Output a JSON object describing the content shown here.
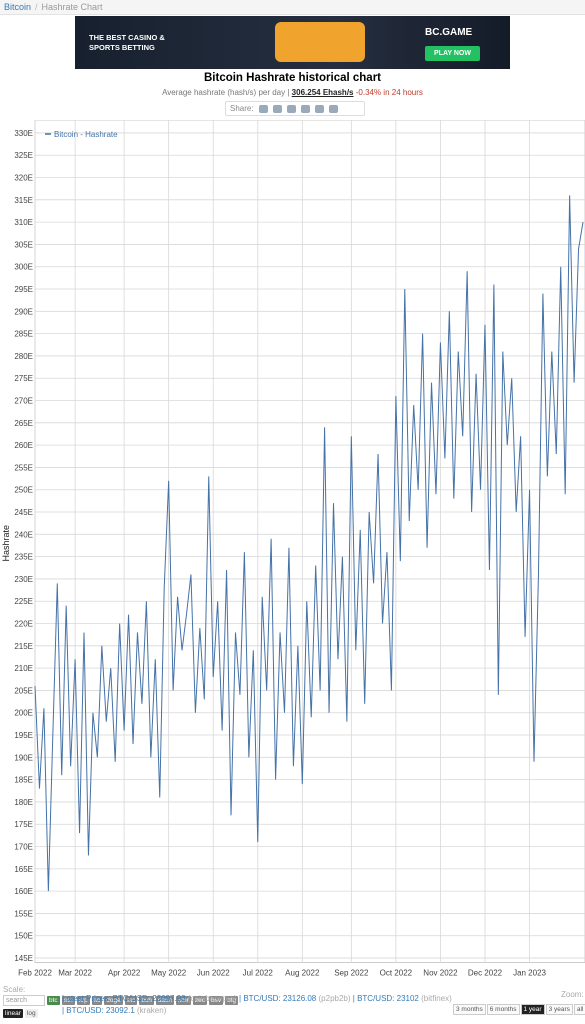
{
  "header": {
    "crumbs": [
      "Bitcoin",
      "Hashrate Chart"
    ]
  },
  "ad": {
    "tagline": "THE BEST CASINO & SPORTS BETTING",
    "brand": "BC.GAME",
    "button": "PLAY NOW"
  },
  "subtitle": {
    "text": "Average hashrate (hash/s) per day |",
    "current": "306.254 Ehash/s",
    "change": "-0.34% in 24 hours"
  },
  "share": "Share:",
  "chart_data": {
    "type": "line",
    "title": "Bitcoin Hashrate historical chart",
    "y_label": "Hashrate",
    "legend": "top-left",
    "grid": true,
    "categories": [
      "Feb 2022",
      null,
      null,
      null,
      null,
      null,
      null,
      null,
      null,
      "Mar 2022",
      null,
      null,
      null,
      null,
      null,
      null,
      null,
      null,
      null,
      null,
      "Apr 2022",
      null,
      null,
      null,
      null,
      null,
      null,
      null,
      null,
      null,
      "May 2022",
      null,
      null,
      null,
      null,
      null,
      null,
      null,
      null,
      null,
      "Jun 2022",
      null,
      null,
      null,
      null,
      null,
      null,
      null,
      null,
      null,
      "Jul 2022",
      null,
      null,
      null,
      null,
      null,
      null,
      null,
      null,
      null,
      "Aug 2022",
      null,
      null,
      null,
      null,
      null,
      null,
      null,
      null,
      null,
      null,
      "Sep 2022",
      null,
      null,
      null,
      null,
      null,
      null,
      null,
      null,
      null,
      "Oct 2022",
      null,
      null,
      null,
      null,
      null,
      null,
      null,
      null,
      null,
      "Nov 2022",
      null,
      null,
      null,
      null,
      null,
      null,
      null,
      null,
      null,
      "Dec 2022",
      null,
      null,
      null,
      null,
      null,
      null,
      null,
      null,
      null,
      "Jan 2023",
      null,
      null,
      null,
      null,
      null,
      null,
      null,
      null,
      null,
      null,
      null,
      null
    ],
    "series": [
      {
        "name": "Bitcoin - Hashrate",
        "color": "#4572a7",
        "values": [
          206,
          183,
          201,
          160,
          195,
          229,
          186,
          224,
          188,
          212,
          173,
          218,
          168,
          200,
          190,
          215,
          198,
          210,
          189,
          220,
          196,
          222,
          193,
          218,
          202,
          225,
          190,
          212,
          181,
          228,
          252,
          205,
          226,
          214,
          222,
          231,
          200,
          219,
          203,
          253,
          208,
          225,
          196,
          232,
          177,
          218,
          204,
          236,
          190,
          214,
          171,
          226,
          205,
          239,
          185,
          218,
          200,
          237,
          188,
          215,
          184,
          225,
          199,
          233,
          205,
          264,
          200,
          247,
          212,
          235,
          198,
          262,
          214,
          241,
          202,
          245,
          229,
          258,
          220,
          236,
          205,
          271,
          234,
          295,
          243,
          269,
          250,
          285,
          237,
          274,
          249,
          283,
          257,
          290,
          248,
          281,
          262,
          299,
          245,
          276,
          250,
          287,
          232,
          296,
          204,
          281,
          260,
          275,
          245,
          262,
          217,
          250,
          189,
          231,
          294,
          253,
          281,
          258,
          300,
          249,
          316,
          274,
          304,
          310
        ]
      }
    ],
    "ylim": [
      144,
      332
    ],
    "yticks": [
      {
        "value": 145,
        "label": "145E"
      },
      {
        "value": 150,
        "label": "150E"
      },
      {
        "value": 155,
        "label": "155E"
      },
      {
        "value": 160,
        "label": "160E"
      },
      {
        "value": 165,
        "label": "165E"
      },
      {
        "value": 170,
        "label": "170E"
      },
      {
        "value": 175,
        "label": "175E"
      },
      {
        "value": 180,
        "label": "180E"
      },
      {
        "value": 185,
        "label": "185E"
      },
      {
        "value": 190,
        "label": "190E"
      },
      {
        "value": 195,
        "label": "195E"
      },
      {
        "value": 200,
        "label": "200E"
      },
      {
        "value": 205,
        "label": "205E"
      },
      {
        "value": 210,
        "label": "210E"
      },
      {
        "value": 215,
        "label": "215E"
      },
      {
        "value": 220,
        "label": "220E"
      },
      {
        "value": 225,
        "label": "225E"
      },
      {
        "value": 230,
        "label": "230E"
      },
      {
        "value": 235,
        "label": "235E"
      },
      {
        "value": 240,
        "label": "240E"
      },
      {
        "value": 245,
        "label": "245E"
      },
      {
        "value": 250,
        "label": "250E"
      },
      {
        "value": 255,
        "label": "255E"
      },
      {
        "value": 260,
        "label": "260E"
      },
      {
        "value": 265,
        "label": "265E"
      },
      {
        "value": 270,
        "label": "270E"
      },
      {
        "value": 275,
        "label": "275E"
      },
      {
        "value": 280,
        "label": "280E"
      },
      {
        "value": 285,
        "label": "285E"
      },
      {
        "value": 290,
        "label": "290E"
      },
      {
        "value": 295,
        "label": "295E"
      },
      {
        "value": 300,
        "label": "300E"
      },
      {
        "value": 305,
        "label": "305E"
      },
      {
        "value": 310,
        "label": "310E"
      },
      {
        "value": 315,
        "label": "315E"
      },
      {
        "value": 320,
        "label": "320E"
      },
      {
        "value": 325,
        "label": "325E"
      },
      {
        "value": 330,
        "label": "330E"
      }
    ]
  },
  "footer": {
    "scale_label": "Scale:",
    "search": "search",
    "coins": [
      "btc",
      "eth",
      "xrp",
      "ltc",
      "doge",
      "etc",
      "bch",
      "dash",
      "xmr",
      "zec",
      "bsv",
      "btg"
    ],
    "scales": [
      "linear",
      "log"
    ],
    "prices_label": "Latest Prices:",
    "prices": [
      {
        "text": "BTC/USD: 23097.93",
        "source": "(coinbasepro)"
      },
      {
        "text": "| BTC/USD: 23126.08",
        "source": "(p2pb2b)"
      },
      {
        "text": "| BTC/USD: 23102",
        "source": "(bitfinex)"
      },
      {
        "text": "| BTC/USD: 23092.1",
        "source": "(kraken)"
      }
    ],
    "zoom_label": "Zoom:",
    "zoom": [
      "3 months",
      "6 months",
      "1 year",
      "3 years",
      "all time"
    ]
  }
}
